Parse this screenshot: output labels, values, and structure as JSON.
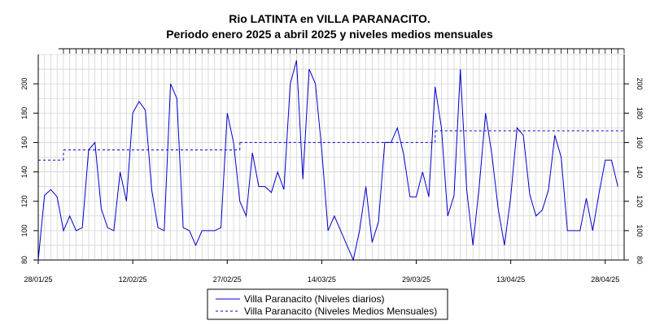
{
  "chart_data": {
    "type": "line",
    "title": "Rio LATINTA en VILLA PARANACITO.",
    "subtitle": "Periodo enero 2025 a abril 2025 y niveles medios mensuales",
    "xlabel": "",
    "ylabel": "",
    "ylim": [
      80,
      220
    ],
    "xlim": [
      "2025-01-28",
      "2025-05-01"
    ],
    "grid": true,
    "legend_position": "bottom",
    "y_ticks": [
      80,
      100,
      120,
      140,
      160,
      180,
      200
    ],
    "x_ticks": [
      {
        "date": "2025-01-28",
        "label": "28/01/25"
      },
      {
        "date": "2025-02-12",
        "label": "12/02/25"
      },
      {
        "date": "2025-02-27",
        "label": "27/02/25"
      },
      {
        "date": "2025-03-14",
        "label": "14/03/25"
      },
      {
        "date": "2025-03-29",
        "label": "29/03/25"
      },
      {
        "date": "2025-04-13",
        "label": "13/04/25"
      },
      {
        "date": "2025-04-28",
        "label": "28/04/25"
      }
    ],
    "series": [
      {
        "name": "Villa Paranacito (Niveles diarios)",
        "color": "#0000cc",
        "style": "solid",
        "points": [
          [
            "2025-01-28",
            80
          ],
          [
            "2025-01-29",
            124
          ],
          [
            "2025-01-30",
            128
          ],
          [
            "2025-01-31",
            123
          ],
          [
            "2025-02-01",
            100
          ],
          [
            "2025-02-02",
            110
          ],
          [
            "2025-02-03",
            100
          ],
          [
            "2025-02-04",
            102
          ],
          [
            "2025-02-05",
            155
          ],
          [
            "2025-02-06",
            160
          ],
          [
            "2025-02-07",
            115
          ],
          [
            "2025-02-08",
            102
          ],
          [
            "2025-02-09",
            100
          ],
          [
            "2025-02-10",
            140
          ],
          [
            "2025-02-11",
            120
          ],
          [
            "2025-02-12",
            180
          ],
          [
            "2025-02-13",
            188
          ],
          [
            "2025-02-14",
            182
          ],
          [
            "2025-02-15",
            128
          ],
          [
            "2025-02-16",
            102
          ],
          [
            "2025-02-17",
            100
          ],
          [
            "2025-02-18",
            200
          ],
          [
            "2025-02-19",
            190
          ],
          [
            "2025-02-20",
            102
          ],
          [
            "2025-02-21",
            100
          ],
          [
            "2025-02-22",
            90
          ],
          [
            "2025-02-23",
            100
          ],
          [
            "2025-02-24",
            100
          ],
          [
            "2025-02-25",
            100
          ],
          [
            "2025-02-26",
            102
          ],
          [
            "2025-02-27",
            180
          ],
          [
            "2025-02-28",
            160
          ],
          [
            "2025-03-01",
            120
          ],
          [
            "2025-03-02",
            110
          ],
          [
            "2025-03-03",
            153
          ],
          [
            "2025-03-04",
            130
          ],
          [
            "2025-03-05",
            130
          ],
          [
            "2025-03-06",
            126
          ],
          [
            "2025-03-07",
            140
          ],
          [
            "2025-03-08",
            128
          ],
          [
            "2025-03-09",
            200
          ],
          [
            "2025-03-10",
            216
          ],
          [
            "2025-03-11",
            135
          ],
          [
            "2025-03-12",
            210
          ],
          [
            "2025-03-13",
            200
          ],
          [
            "2025-03-14",
            155
          ],
          [
            "2025-03-15",
            100
          ],
          [
            "2025-03-16",
            110
          ],
          [
            "2025-03-17",
            100
          ],
          [
            "2025-03-18",
            90
          ],
          [
            "2025-03-19",
            80
          ],
          [
            "2025-03-20",
            100
          ],
          [
            "2025-03-21",
            130
          ],
          [
            "2025-03-22",
            92
          ],
          [
            "2025-03-23",
            106
          ],
          [
            "2025-03-24",
            160
          ],
          [
            "2025-03-25",
            160
          ],
          [
            "2025-03-26",
            170
          ],
          [
            "2025-03-27",
            152
          ],
          [
            "2025-03-28",
            123
          ],
          [
            "2025-03-29",
            123
          ],
          [
            "2025-03-30",
            140
          ],
          [
            "2025-03-31",
            123
          ],
          [
            "2025-04-01",
            198
          ],
          [
            "2025-04-02",
            170
          ],
          [
            "2025-04-03",
            110
          ],
          [
            "2025-04-04",
            124
          ],
          [
            "2025-04-05",
            210
          ],
          [
            "2025-04-06",
            128
          ],
          [
            "2025-04-07",
            90
          ],
          [
            "2025-04-08",
            130
          ],
          [
            "2025-04-09",
            180
          ],
          [
            "2025-04-10",
            152
          ],
          [
            "2025-04-11",
            115
          ],
          [
            "2025-04-12",
            90
          ],
          [
            "2025-04-13",
            123
          ],
          [
            "2025-04-14",
            170
          ],
          [
            "2025-04-15",
            165
          ],
          [
            "2025-04-16",
            125
          ],
          [
            "2025-04-17",
            110
          ],
          [
            "2025-04-18",
            114
          ],
          [
            "2025-04-19",
            128
          ],
          [
            "2025-04-20",
            165
          ],
          [
            "2025-04-21",
            150
          ],
          [
            "2025-04-22",
            100
          ],
          [
            "2025-04-23",
            100
          ],
          [
            "2025-04-24",
            100
          ],
          [
            "2025-04-25",
            122
          ],
          [
            "2025-04-26",
            100
          ],
          [
            "2025-04-27",
            125
          ],
          [
            "2025-04-28",
            148
          ],
          [
            "2025-04-29",
            148
          ],
          [
            "2025-04-30",
            130
          ]
        ]
      },
      {
        "name": "Villa Paranacito (Niveles Medios Mensuales)",
        "color": "#0000cc",
        "style": "dashed",
        "segments": [
          {
            "start": "2025-01-28",
            "end": "2025-02-01",
            "value": 148
          },
          {
            "start": "2025-02-01",
            "end": "2025-03-01",
            "value": 155
          },
          {
            "start": "2025-03-01",
            "end": "2025-04-01",
            "value": 160
          },
          {
            "start": "2025-04-01",
            "end": "2025-05-01",
            "value": 168
          }
        ]
      }
    ]
  }
}
